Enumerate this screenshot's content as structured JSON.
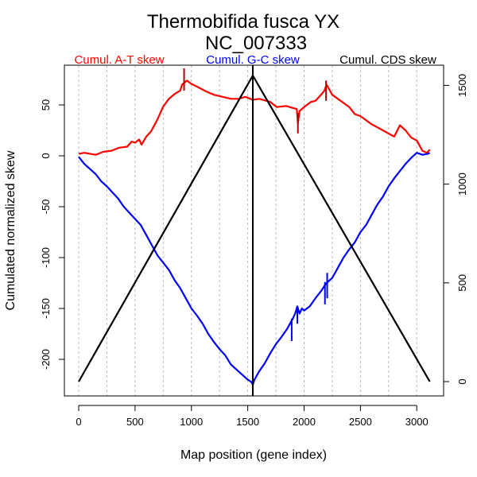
{
  "chart_data": {
    "type": "line",
    "title": "Thermobifida fusca YX",
    "subtitle": "NC_007333",
    "xlabel": "Map position (gene index)",
    "ylabel": "Cumulated normalized skew",
    "xlim": [
      -130,
      3270
    ],
    "ylim_left": [
      -240,
      89
    ],
    "ylim_right": [
      -75,
      1600
    ],
    "x_ticks": [
      0,
      500,
      1000,
      1500,
      2000,
      2500,
      3000
    ],
    "x_tick_labels": [
      "0",
      "500",
      "1000",
      "1500",
      "2000",
      "2500",
      "3000"
    ],
    "x_grid": [
      0,
      250,
      500,
      750,
      1000,
      1250,
      1500,
      1750,
      2000,
      2250,
      2500,
      2750,
      3000
    ],
    "y_left_ticks": [
      50,
      0,
      -50,
      -100,
      -150,
      -200
    ],
    "y_left_tick_labels": [
      "50",
      "0",
      "-50",
      "-100",
      "-150",
      "-200"
    ],
    "y_right_ticks": [
      0,
      500,
      1000,
      1500
    ],
    "y_right_tick_labels": [
      "0",
      "500",
      "1000",
      "1500"
    ],
    "grid": "vertical-dashed",
    "legend": [
      {
        "label": "Cumul. A-T skew",
        "color": "#ff0000"
      },
      {
        "label": "Cumul. G-C skew",
        "color": "#0000ff"
      },
      {
        "label": "Cumul. CDS skew",
        "color": "#000000"
      }
    ],
    "vertical_marker_x": 1545,
    "series": [
      {
        "name": "Cumul. A-T skew",
        "axis": "left",
        "color": "#ff0000",
        "x": [
          0,
          50,
          150,
          220,
          290,
          360,
          430,
          470,
          500,
          536,
          557,
          600,
          642,
          700,
          748,
          800,
          854,
          900,
          918,
          960,
          995,
          1050,
          1136,
          1200,
          1277,
          1350,
          1418,
          1480,
          1545,
          1600,
          1700,
          1757,
          1842,
          1900,
          1935,
          1945,
          1960,
          2000,
          2060,
          2100,
          2150,
          2180,
          2200,
          2250,
          2300,
          2400,
          2450,
          2500,
          2600,
          2700,
          2780,
          2800,
          2850,
          2900,
          2950,
          3000,
          3050,
          3090,
          3115
        ],
        "y": [
          2,
          3,
          1,
          4,
          5,
          8,
          9,
          14,
          13,
          16,
          11,
          19,
          24,
          36,
          48,
          56,
          61,
          64,
          70,
          74,
          71,
          68,
          63,
          60,
          58,
          56,
          56,
          58,
          55,
          56,
          53,
          48,
          49,
          47,
          46,
          32,
          44,
          48,
          53,
          54,
          60,
          64,
          70,
          60,
          56,
          48,
          41,
          39,
          31,
          25,
          20,
          19,
          30,
          25,
          18,
          15,
          5,
          3,
          6
        ]
      },
      {
        "name": "Cumul. G-C skew",
        "axis": "left",
        "color": "#0000ff",
        "x": [
          0,
          50,
          100,
          150,
          200,
          250,
          300,
          350,
          400,
          450,
          500,
          550,
          600,
          650,
          700,
          750,
          800,
          850,
          900,
          950,
          1000,
          1050,
          1100,
          1150,
          1200,
          1250,
          1300,
          1350,
          1400,
          1450,
          1500,
          1530,
          1545,
          1560,
          1600,
          1650,
          1700,
          1750,
          1800,
          1850,
          1900,
          1920,
          1940,
          1960,
          1980,
          2000,
          2050,
          2100,
          2150,
          2180,
          2200,
          2250,
          2300,
          2350,
          2400,
          2450,
          2500,
          2550,
          2600,
          2650,
          2700,
          2750,
          2800,
          2850,
          2900,
          2950,
          3000,
          3050,
          3100,
          3115
        ],
        "y": [
          -1,
          -8,
          -13,
          -18,
          -25,
          -30,
          -36,
          -42,
          -50,
          -56,
          -62,
          -68,
          -78,
          -88,
          -98,
          -105,
          -112,
          -122,
          -130,
          -140,
          -150,
          -157,
          -165,
          -175,
          -183,
          -190,
          -196,
          -205,
          -210,
          -215,
          -220,
          -222,
          -225,
          -220,
          -212,
          -204,
          -194,
          -185,
          -178,
          -170,
          -160,
          -155,
          -148,
          -155,
          -150,
          -152,
          -148,
          -140,
          -133,
          -128,
          -125,
          -120,
          -110,
          -100,
          -92,
          -85,
          -75,
          -68,
          -58,
          -48,
          -40,
          -30,
          -22,
          -15,
          -8,
          -2,
          3,
          1,
          2,
          3
        ]
      },
      {
        "name": "Cumul. CDS skew",
        "axis": "right",
        "color": "#000000",
        "x": [
          0,
          1545,
          3115
        ],
        "y": [
          0,
          1550,
          0
        ]
      }
    ],
    "spikes": [
      {
        "series": "Cumul. A-T skew",
        "x": 935,
        "y_low": 64,
        "y_high": 86,
        "color": "#b00000"
      },
      {
        "series": "Cumul. A-T skew",
        "x": 1945,
        "y_low": 22,
        "y_high": 42,
        "color": "#b00000"
      },
      {
        "series": "Cumul. A-T skew",
        "x": 2195,
        "y_low": 54,
        "y_high": 74,
        "color": "#b00000"
      },
      {
        "series": "Cumul. G-C skew",
        "x": 1890,
        "y_low": -182,
        "y_high": -160,
        "color": "#0000ff"
      },
      {
        "series": "Cumul. G-C skew",
        "x": 1940,
        "y_low": -165,
        "y_high": -148,
        "color": "#0000ff"
      },
      {
        "series": "Cumul. G-C skew",
        "x": 2185,
        "y_low": -146,
        "y_high": -124,
        "color": "#0000ff"
      },
      {
        "series": "Cumul. G-C skew",
        "x": 2205,
        "y_low": -140,
        "y_high": -115,
        "color": "#0000ff"
      }
    ]
  }
}
